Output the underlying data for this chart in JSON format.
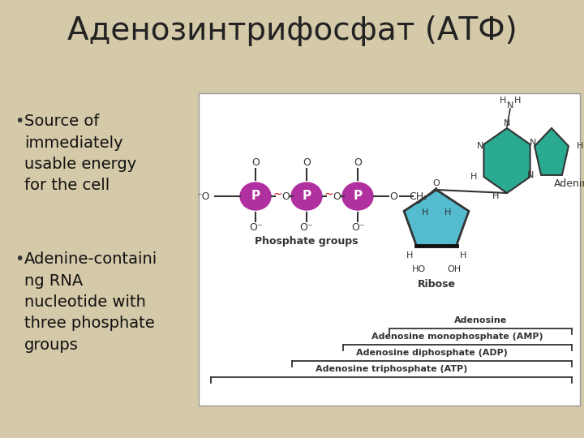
{
  "title": "Аденозинтрифосфат (АТФ)",
  "title_fontsize": 28,
  "title_color": "#222222",
  "background_color": "#d4c9a8",
  "bullet1": "Source of\nimmediately\nusable energy\nfor the cell",
  "bullet2": "Adenine-containi\nng RNA\nnucleotide with\nthree phosphate\ngroups",
  "bullet_fontsize": 14,
  "bullet_color": "#111111",
  "diagram_box_color": "#ffffff",
  "phosphate_color": "#b030a0",
  "ribose_color": "#55bcd0",
  "adenine_color": "#2aaa90",
  "line_color": "#333333",
  "label_color": "#222222"
}
